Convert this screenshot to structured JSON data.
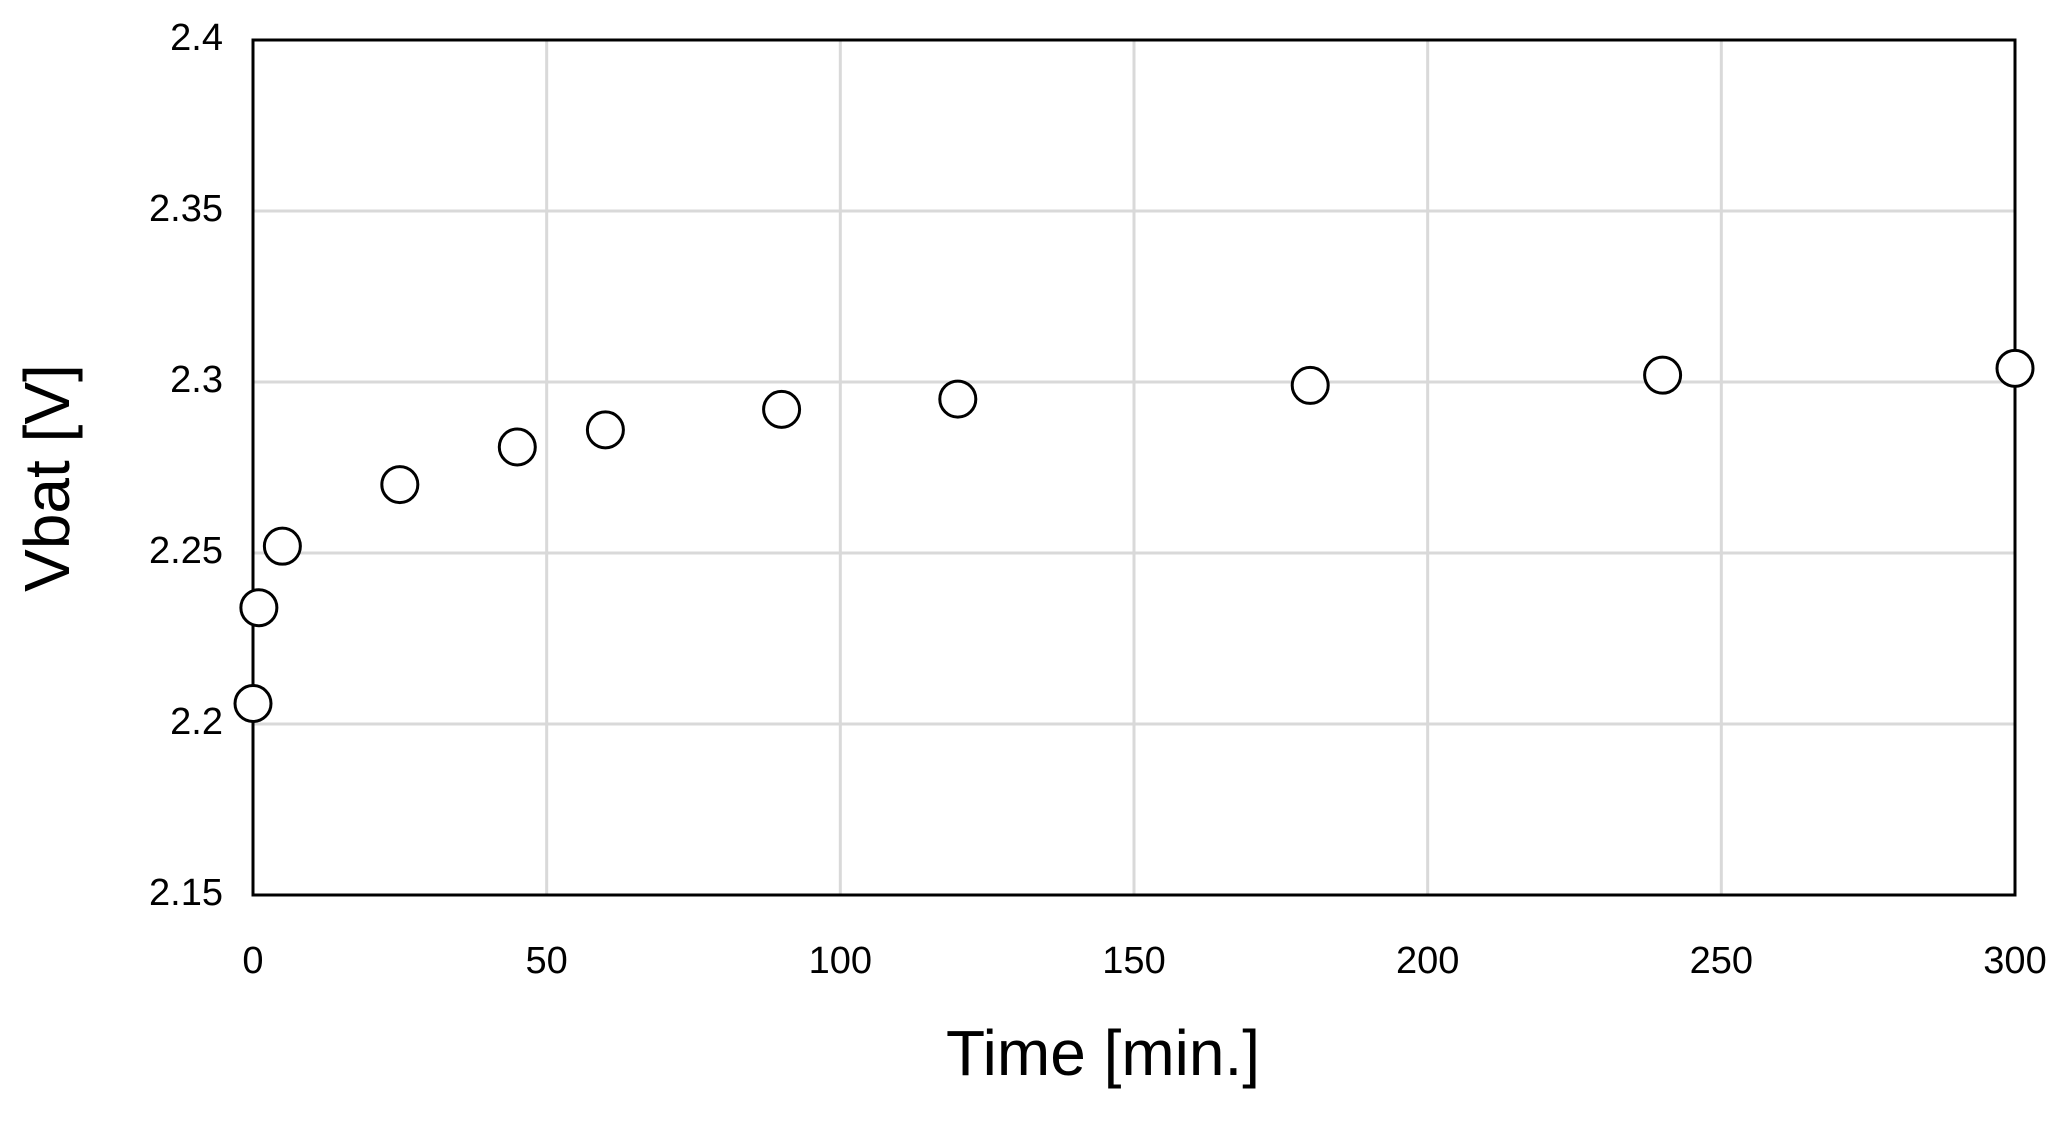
{
  "chart_data": {
    "type": "scatter",
    "x_label": "Time [min.]",
    "y_label": "Vbat [V]",
    "series": [
      {
        "color": "#000000",
        "x": [
          0,
          1,
          5,
          25,
          45,
          60,
          90,
          120,
          180,
          240,
          300
        ],
        "values": [
          2.206,
          2.234,
          2.252,
          2.27,
          2.281,
          2.286,
          2.292,
          2.295,
          2.299,
          2.302,
          2.304
        ]
      }
    ],
    "xlim": [
      0,
      300
    ],
    "xticks": [
      0,
      50,
      100,
      150,
      200,
      250,
      300
    ],
    "ylim": [
      2.15,
      2.4
    ],
    "yticks": [
      2.15,
      2.2,
      2.25,
      2.3,
      2.35,
      2.4
    ],
    "grid": true
  }
}
